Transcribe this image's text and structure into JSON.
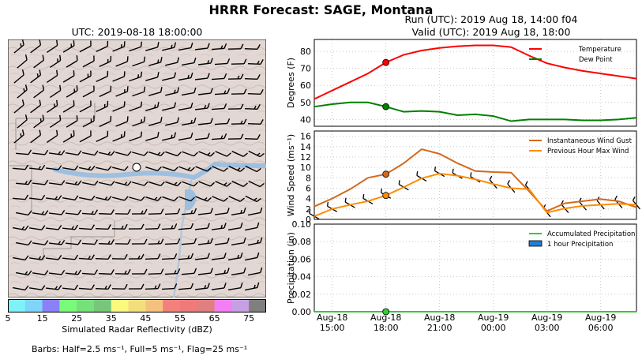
{
  "suptitle": "HRRR Forecast: SAGE, Montana",
  "map": {
    "title": "UTC: 2019-08-18 18:00:00",
    "colorbar_ticks": [
      "5",
      "15",
      "25",
      "35",
      "45",
      "55",
      "65",
      "75"
    ],
    "colorbar_label": "Simulated Radar Reflectivity (dBZ)",
    "colorbar_colors": [
      "#7ef2f9",
      "#7fd4f9",
      "#8a80f8",
      "#7afa7a",
      "#76e07a",
      "#76c77a",
      "#fafa7c",
      "#f3de7c",
      "#f4c27c",
      "#f4807b",
      "#ee7a7a",
      "#e07f7f",
      "#f67ef4",
      "#c5a0e2",
      "#7f7f7f"
    ],
    "barbs_note": "Barbs: Half=2.5 ms⁻¹, Full=5 ms⁻¹, Flag=25 ms⁻¹"
  },
  "run": {
    "line1": "Run (UTC): 2019 Aug 18, 14:00 f04",
    "line2": "Valid (UTC): 2019 Aug 18, 18:00"
  },
  "chart_data": [
    {
      "type": "line",
      "ylabel": "Degrees (F)",
      "ylim": [
        36,
        87
      ],
      "yticks": [
        40,
        50,
        60,
        70,
        80
      ],
      "x": [
        "2019-08-18 14:00",
        "2019-08-18 15:00",
        "2019-08-18 16:00",
        "2019-08-18 17:00",
        "2019-08-18 18:00",
        "2019-08-18 19:00",
        "2019-08-18 20:00",
        "2019-08-18 21:00",
        "2019-08-18 22:00",
        "2019-08-18 23:00",
        "2019-08-19 00:00",
        "2019-08-19 01:00",
        "2019-08-19 02:00",
        "2019-08-19 03:00",
        "2019-08-19 04:00",
        "2019-08-19 05:00",
        "2019-08-19 06:00",
        "2019-08-19 07:00",
        "2019-08-19 08:00"
      ],
      "series": [
        {
          "name": "Temperature",
          "color": "#ff0000",
          "values": [
            52,
            57,
            62,
            67,
            73.5,
            78,
            80.5,
            82,
            83,
            83.5,
            83.5,
            82.5,
            77.5,
            73,
            70.5,
            68.5,
            67,
            65.5,
            64
          ],
          "marker": 73.5
        },
        {
          "name": "Dew Point",
          "color": "#008000",
          "values": [
            47.5,
            49,
            50,
            50,
            47.5,
            44.5,
            45,
            44.5,
            42.5,
            43,
            42,
            39,
            40,
            40,
            40,
            39.5,
            39.5,
            40,
            41
          ],
          "marker": 47.5
        }
      ],
      "legend": "top-right",
      "grid": true
    },
    {
      "type": "line",
      "ylabel": "Wind Speed (ms⁻¹)",
      "ylim": [
        0,
        17
      ],
      "yticks": [
        0,
        2,
        4,
        6,
        8,
        10,
        12,
        14,
        16
      ],
      "series": [
        {
          "name": "Instantaneous Wind Gust",
          "color": "#d2691e",
          "values": [
            2.5,
            4,
            5.8,
            8,
            8.7,
            10.8,
            13.5,
            12.6,
            10.8,
            9.3,
            9.1,
            9.0,
            5.4,
            1.6,
            3.1,
            3.5,
            3.9,
            3.5,
            2.3
          ],
          "marker": 8.7
        },
        {
          "name": "Previous Hour Max Wind",
          "color": "#ff8c00",
          "values": [
            0.6,
            2,
            2.8,
            3.5,
            4.6,
            6.2,
            7.9,
            8.8,
            8.4,
            7.7,
            6.8,
            6.0,
            5.8,
            1.3,
            2.1,
            2.6,
            2.8,
            3.0,
            2.8
          ],
          "marker": 4.6
        }
      ],
      "legend": "top-right",
      "grid": true
    },
    {
      "type": "bar",
      "ylabel": "Precipitation (in)",
      "ylim": [
        0,
        0.1
      ],
      "yticks": [
        0.0,
        0.02,
        0.04,
        0.06,
        0.08,
        0.1
      ],
      "series": [
        {
          "name": "Accumulated Precipitation",
          "color": "#32cd32",
          "values": [
            0,
            0,
            0,
            0,
            0,
            0,
            0,
            0,
            0,
            0,
            0,
            0,
            0,
            0,
            0,
            0,
            0,
            0,
            0
          ],
          "marker": 0
        },
        {
          "name": "1 hour Precipitation",
          "color": "#1e7fd6",
          "values": [
            0,
            0,
            0,
            0,
            0,
            0,
            0,
            0,
            0,
            0,
            0,
            0,
            0,
            0,
            0,
            0,
            0,
            0,
            0
          ]
        }
      ],
      "legend": "top-right",
      "grid": true
    }
  ],
  "xticks": [
    {
      "line1": "Aug-18",
      "line2": "15:00",
      "hour": 1
    },
    {
      "line1": "Aug-18",
      "line2": "18:00",
      "hour": 4
    },
    {
      "line1": "Aug-18",
      "line2": "21:00",
      "hour": 7
    },
    {
      "line1": "Aug-19",
      "line2": "00:00",
      "hour": 10
    },
    {
      "line1": "Aug-19",
      "line2": "03:00",
      "hour": 13
    },
    {
      "line1": "Aug-19",
      "line2": "06:00",
      "hour": 16
    }
  ]
}
